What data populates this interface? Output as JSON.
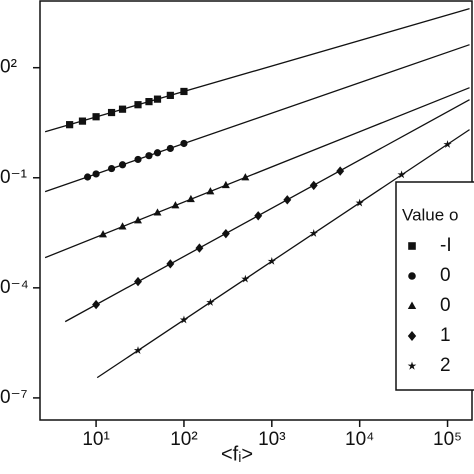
{
  "chart_data": {
    "type": "scatter",
    "log_x": true,
    "log_y": true,
    "xlabel": "<fᵢ>",
    "xlim": [
      2.3,
      200000
    ],
    "ylim": [
      2.5e-08,
      7000
    ],
    "xticks": [
      {
        "value": 10,
        "label": "10¹"
      },
      {
        "value": 100,
        "label": "10²"
      },
      {
        "value": 1000,
        "label": "10³"
      },
      {
        "value": 10000,
        "label": "10⁴"
      },
      {
        "value": 100000,
        "label": "10⁵"
      }
    ],
    "yticks": [
      {
        "value": 100,
        "label": "0²"
      },
      {
        "value": 0.1,
        "label": "0⁻¹"
      },
      {
        "value": 0.0001,
        "label": "0⁻⁴"
      },
      {
        "value": 1e-07,
        "label": "0⁻⁷"
      }
    ],
    "legend_title": "Value o",
    "legend_position": "lower right",
    "series": [
      {
        "name": "-I",
        "marker": "square",
        "color": "#111111",
        "x": [
          5,
          7,
          10,
          15,
          20,
          30,
          40,
          50,
          70,
          100
        ],
        "values": [
          2.8,
          3.5,
          4.6,
          6.0,
          7.4,
          9.8,
          11.9,
          13.9,
          17.6,
          22.5
        ],
        "fit": {
          "x": [
            2.63,
            178000
          ],
          "values": [
            1.8,
            4070
          ]
        }
      },
      {
        "name": "0",
        "marker": "circle",
        "color": "#111111",
        "x": [
          8,
          10,
          15,
          20,
          30,
          40,
          50,
          70,
          100
        ],
        "values": [
          0.105,
          0.127,
          0.178,
          0.226,
          0.316,
          0.4,
          0.48,
          0.63,
          0.86
        ],
        "fit": {
          "x": [
            2.63,
            178000
          ],
          "values": [
            0.042,
            424
          ]
        }
      },
      {
        "name": "0",
        "marker": "triangle",
        "color": "#111111",
        "x": [
          12,
          20,
          30,
          50,
          80,
          120,
          200,
          300,
          500
        ],
        "values": [
          0.00285,
          0.00466,
          0.00685,
          0.0112,
          0.0176,
          0.026,
          0.0423,
          0.0625,
          0.102
        ],
        "fit": {
          "x": [
            2.63,
            178000
          ],
          "values": [
            0.000665,
            28.5
          ]
        }
      },
      {
        "name": "1",
        "marker": "diamond",
        "color": "#111111",
        "x": [
          10,
          30,
          70,
          150,
          300,
          700,
          1500,
          3000,
          6000
        ],
        "values": [
          3.5e-05,
          0.000148,
          0.00045,
          0.00121,
          0.003,
          0.0092,
          0.025,
          0.062,
          0.152
        ],
        "fit": {
          "x": [
            4.45,
            178000
          ],
          "values": [
            1.2e-05,
            13.4
          ]
        }
      },
      {
        "name": "2",
        "marker": "star",
        "color": "#111111",
        "x": [
          30,
          100,
          200,
          500,
          1000,
          3000,
          10000,
          30000,
          100000
        ],
        "values": [
          1.96e-06,
          1.34e-05,
          4e-05,
          0.000174,
          0.00053,
          0.00305,
          0.0206,
          0.121,
          0.81
        ],
        "fit": {
          "x": [
            10.3,
            178000
          ],
          "values": [
            3.57e-07,
            2.05
          ]
        }
      }
    ]
  }
}
